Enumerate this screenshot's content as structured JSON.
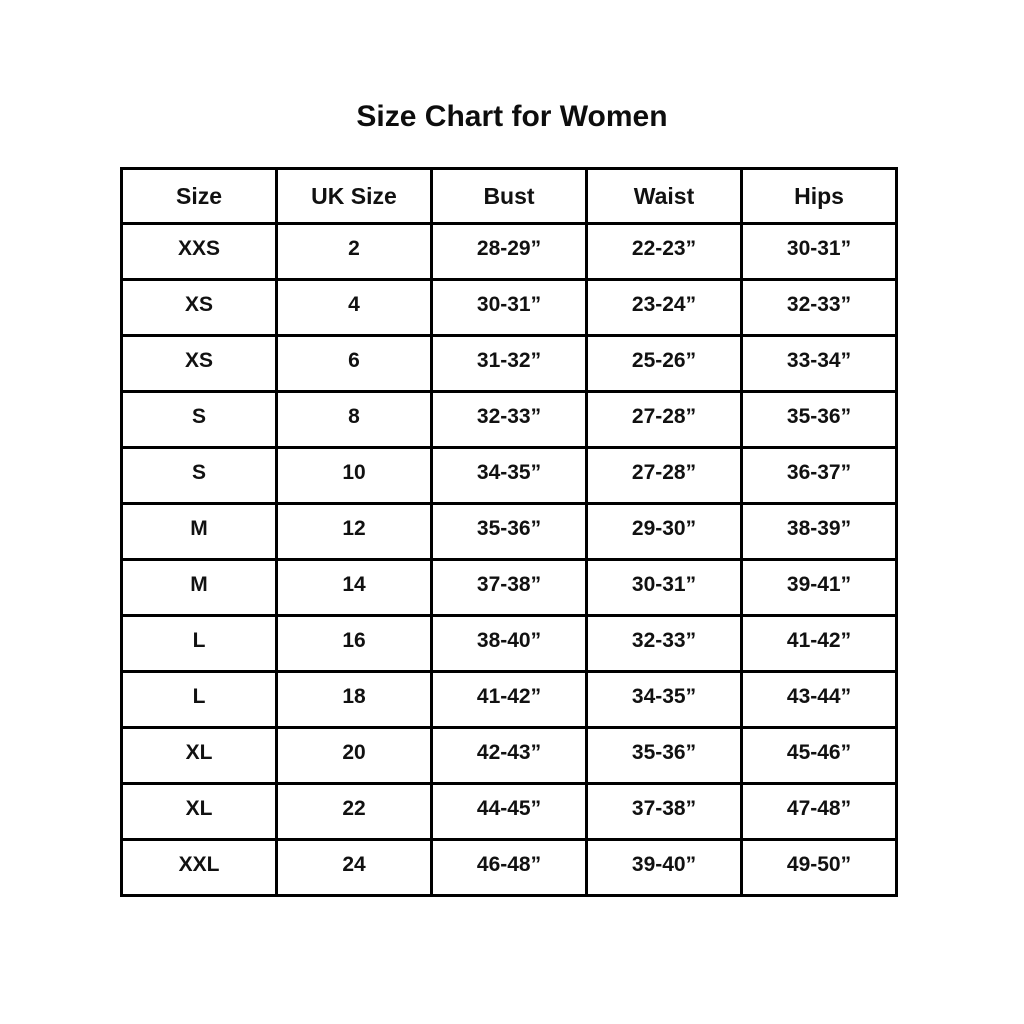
{
  "title": "Size Chart for Women",
  "chart_data": {
    "type": "table",
    "title": "Size Chart for Women",
    "columns": [
      "Size",
      "UK Size",
      "Bust",
      "Waist",
      "Hips"
    ],
    "rows": [
      [
        "XXS",
        "2",
        "28-29”",
        "22-23”",
        "30-31”"
      ],
      [
        "XS",
        "4",
        "30-31”",
        "23-24”",
        "32-33”"
      ],
      [
        "XS",
        "6",
        "31-32”",
        "25-26”",
        "33-34”"
      ],
      [
        "S",
        "8",
        "32-33”",
        "27-28”",
        "35-36”"
      ],
      [
        "S",
        "10",
        "34-35”",
        "27-28”",
        "36-37”"
      ],
      [
        "M",
        "12",
        "35-36”",
        "29-30”",
        "38-39”"
      ],
      [
        "M",
        "14",
        "37-38”",
        "30-31”",
        "39-41”"
      ],
      [
        "L",
        "16",
        "38-40”",
        "32-33”",
        "41-42”"
      ],
      [
        "L",
        "18",
        "41-42”",
        "34-35”",
        "43-44”"
      ],
      [
        "XL",
        "20",
        "42-43”",
        "35-36”",
        "45-46”"
      ],
      [
        "XL",
        "22",
        "44-45”",
        "37-38”",
        "47-48”"
      ],
      [
        "XXL",
        "24",
        "46-48”",
        "39-40”",
        "49-50”"
      ]
    ],
    "layout": {
      "legend": "none",
      "grid": "full-borders"
    },
    "colors": {
      "background": "#ffffff",
      "border": "#000000",
      "text": "#111111"
    }
  }
}
